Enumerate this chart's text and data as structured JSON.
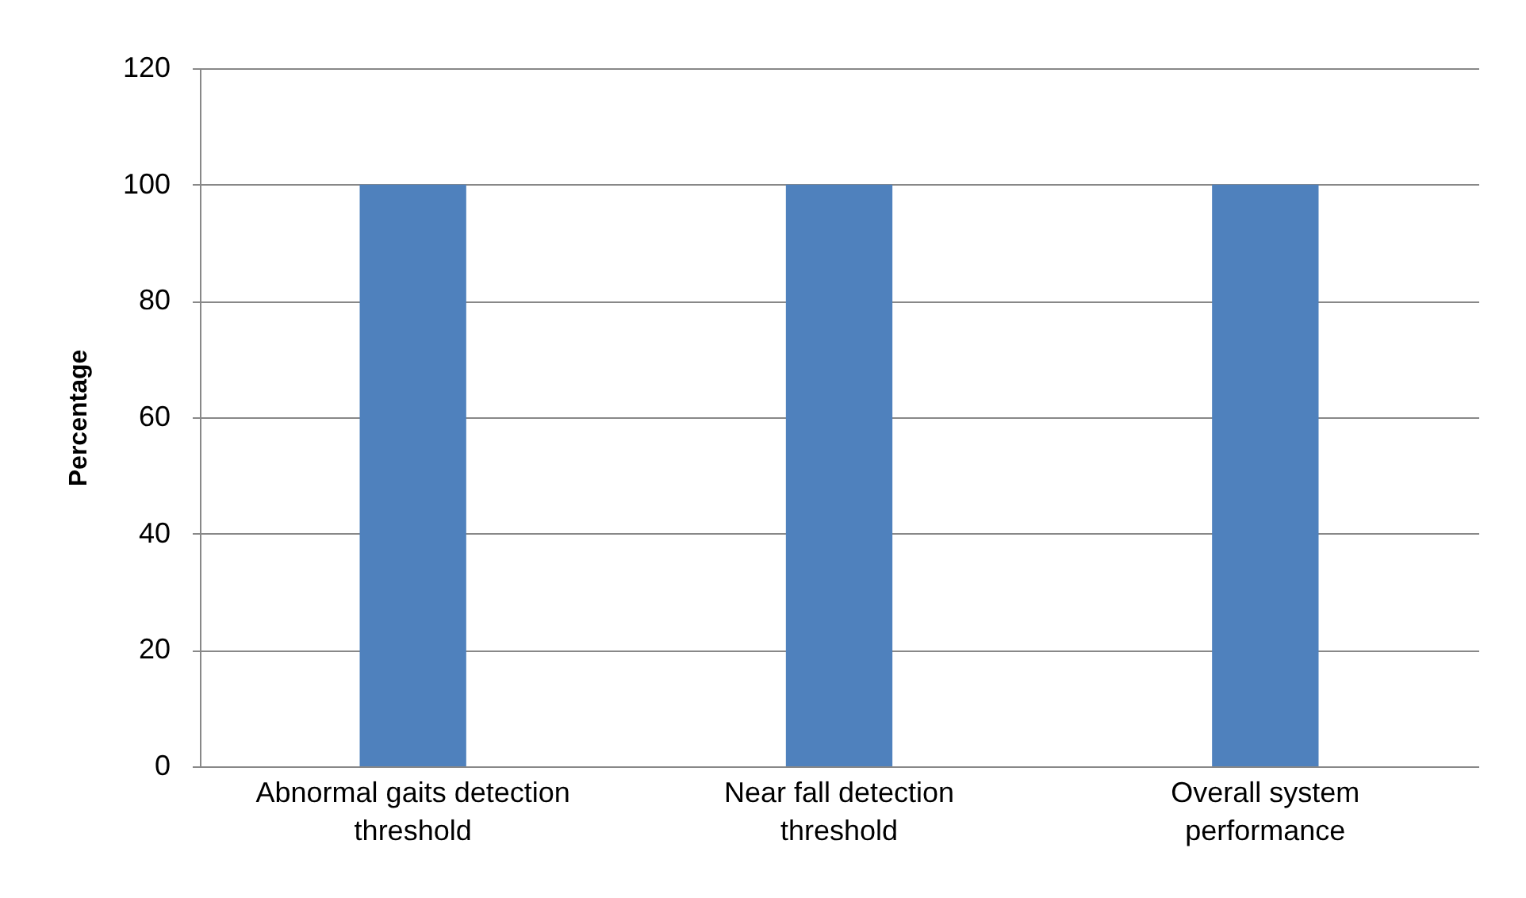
{
  "chart_data": {
    "type": "bar",
    "ylabel": "Percentage",
    "categories": [
      "Abnormal gaits detection threshold",
      "Near fall detection threshold",
      "Overall system performance"
    ],
    "values": [
      100,
      100,
      100
    ],
    "color": "#4f81bd",
    "ylim": [
      0,
      120
    ],
    "yticks": [
      0,
      20,
      40,
      60,
      80,
      100,
      120
    ],
    "grid": "y"
  }
}
